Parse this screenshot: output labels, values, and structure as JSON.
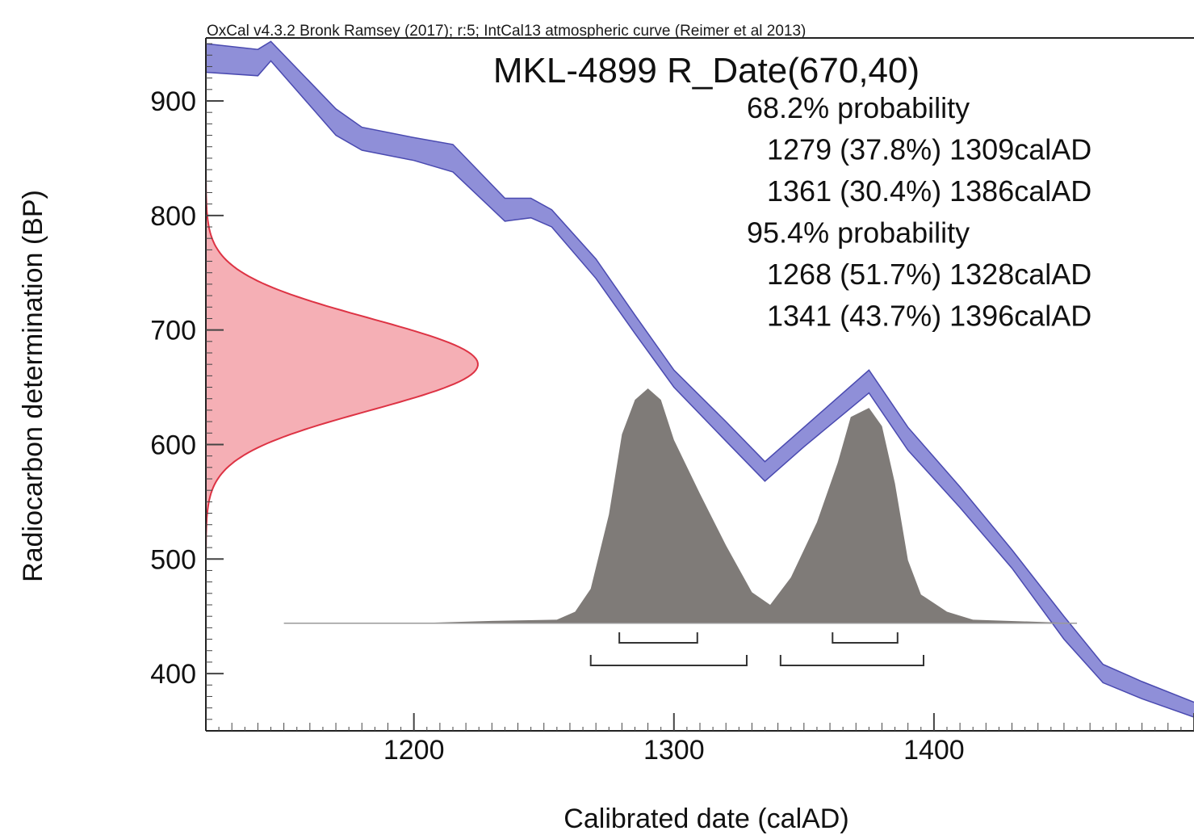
{
  "credit": "OxCal v4.3.2 Bronk Ramsey (2017); r:5; IntCal13 atmospheric curve (Reimer et al 2013)",
  "chart_data": {
    "type": "area",
    "title": "MKL-4899 R_Date(670,40)",
    "xlabel": "Calibrated date (calAD)",
    "ylabel": "Radiocarbon determination (BP)",
    "xlim": [
      1120,
      1500
    ],
    "ylim": [
      350,
      955
    ],
    "x_ticks": [
      1200,
      1300,
      1400
    ],
    "y_ticks": [
      400,
      500,
      600,
      700,
      800,
      900
    ],
    "probability_text": [
      {
        "text": "68.2% probability",
        "indent": false
      },
      {
        "text": "1279 (37.8%) 1309calAD",
        "indent": true
      },
      {
        "text": "1361 (30.4%) 1386calAD",
        "indent": true
      },
      {
        "text": "95.4% probability",
        "indent": false
      },
      {
        "text": "1268 (51.7%) 1328calAD",
        "indent": true
      },
      {
        "text": "1341 (43.7%) 1396calAD",
        "indent": true
      }
    ],
    "calibration_curve": {
      "name": "IntCal13",
      "color": "#8f8fd8",
      "edge_color": "#4a4ab0",
      "points": [
        {
          "x": 1120,
          "upper": 950,
          "lower": 925
        },
        {
          "x": 1140,
          "upper": 945,
          "lower": 922
        },
        {
          "x": 1145,
          "upper": 952,
          "lower": 935
        },
        {
          "x": 1170,
          "upper": 893,
          "lower": 870
        },
        {
          "x": 1180,
          "upper": 877,
          "lower": 857
        },
        {
          "x": 1200,
          "upper": 868,
          "lower": 848
        },
        {
          "x": 1215,
          "upper": 862,
          "lower": 838
        },
        {
          "x": 1235,
          "upper": 815,
          "lower": 795
        },
        {
          "x": 1245,
          "upper": 815,
          "lower": 798
        },
        {
          "x": 1253,
          "upper": 805,
          "lower": 790
        },
        {
          "x": 1270,
          "upper": 762,
          "lower": 745
        },
        {
          "x": 1285,
          "upper": 713,
          "lower": 697
        },
        {
          "x": 1300,
          "upper": 665,
          "lower": 650
        },
        {
          "x": 1320,
          "upper": 620,
          "lower": 603
        },
        {
          "x": 1335,
          "upper": 585,
          "lower": 568
        },
        {
          "x": 1350,
          "upper": 615,
          "lower": 598
        },
        {
          "x": 1375,
          "upper": 665,
          "lower": 645
        },
        {
          "x": 1390,
          "upper": 615,
          "lower": 595
        },
        {
          "x": 1410,
          "upper": 563,
          "lower": 545
        },
        {
          "x": 1430,
          "upper": 508,
          "lower": 492
        },
        {
          "x": 1450,
          "upper": 450,
          "lower": 430
        },
        {
          "x": 1465,
          "upper": 408,
          "lower": 392
        },
        {
          "x": 1480,
          "upper": 393,
          "lower": 378
        },
        {
          "x": 1500,
          "upper": 375,
          "lower": 362
        }
      ]
    },
    "radiocarbon_measurement": {
      "mean": 670,
      "sigma": 40,
      "color": "#f4a6ad",
      "edge_color": "#dd3344"
    },
    "posterior_distribution": {
      "color": "#7f7b78",
      "baseline_y": 444,
      "points": [
        {
          "x": 1150,
          "y": 0
        },
        {
          "x": 1200,
          "y": 0
        },
        {
          "x": 1230,
          "y": 2
        },
        {
          "x": 1255,
          "y": 3
        },
        {
          "x": 1262,
          "y": 10
        },
        {
          "x": 1268,
          "y": 30
        },
        {
          "x": 1275,
          "y": 95
        },
        {
          "x": 1280,
          "y": 165
        },
        {
          "x": 1285,
          "y": 195
        },
        {
          "x": 1290,
          "y": 205
        },
        {
          "x": 1295,
          "y": 195
        },
        {
          "x": 1300,
          "y": 160
        },
        {
          "x": 1310,
          "y": 113
        },
        {
          "x": 1320,
          "y": 68
        },
        {
          "x": 1330,
          "y": 27
        },
        {
          "x": 1337,
          "y": 16
        },
        {
          "x": 1345,
          "y": 40
        },
        {
          "x": 1355,
          "y": 88
        },
        {
          "x": 1363,
          "y": 140
        },
        {
          "x": 1368,
          "y": 180
        },
        {
          "x": 1375,
          "y": 188
        },
        {
          "x": 1380,
          "y": 172
        },
        {
          "x": 1385,
          "y": 122
        },
        {
          "x": 1390,
          "y": 55
        },
        {
          "x": 1395,
          "y": 25
        },
        {
          "x": 1405,
          "y": 10
        },
        {
          "x": 1415,
          "y": 3
        },
        {
          "x": 1455,
          "y": 0
        }
      ]
    },
    "ranges_68": [
      [
        1279,
        1309
      ],
      [
        1361,
        1386
      ]
    ],
    "ranges_95": [
      [
        1268,
        1328
      ],
      [
        1341,
        1396
      ]
    ]
  }
}
